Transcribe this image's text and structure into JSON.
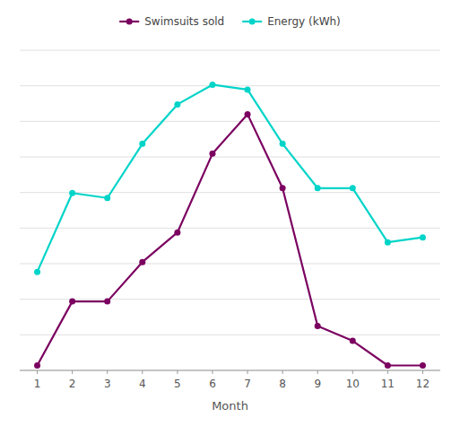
{
  "chart_data": {
    "type": "line",
    "x_label": "Month",
    "x": [
      1,
      2,
      3,
      4,
      5,
      6,
      7,
      8,
      9,
      10,
      11,
      12
    ],
    "xlim": [
      0.5,
      12.5
    ],
    "xticks": [
      1,
      2,
      3,
      4,
      5,
      6,
      7,
      8,
      9,
      10,
      11,
      12
    ],
    "ylim": [
      0,
      65
    ],
    "yticks": [
      0,
      7.222222222222222,
      14.444444444444445,
      21.666666666666668,
      28.88888888888889,
      36.111111111111114,
      43.333333333333336,
      50.55555555555556,
      57.77777777777778,
      65
    ],
    "tick_labels": "x",
    "grid": true,
    "legend": "top",
    "series": [
      {
        "name": "Swimsuits sold",
        "color": "#7b0060",
        "marker": "circle",
        "line_style": "solid",
        "values": [
          1,
          14,
          14,
          22,
          28,
          44,
          52,
          37,
          9,
          6,
          1,
          1
        ]
      },
      {
        "name": "Energy (kWh)",
        "color": "#00d4c8",
        "marker": "circle",
        "line_style": "solid",
        "values": [
          20,
          36,
          35,
          46,
          54,
          58,
          57,
          46,
          37,
          37,
          26,
          27
        ]
      }
    ]
  }
}
